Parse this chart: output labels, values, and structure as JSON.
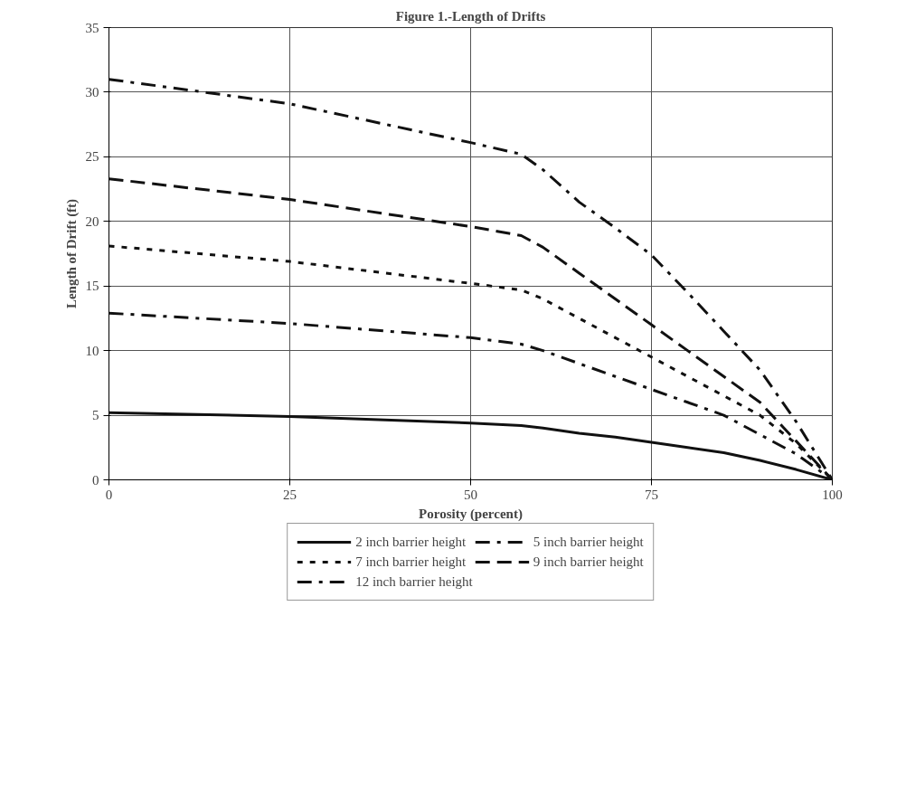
{
  "chart_data": {
    "type": "line",
    "title": "Figure 1.-Length of Drifts",
    "xlabel": "Porosity (percent)",
    "ylabel": "Length of Drift (ft)",
    "x": [
      0,
      25,
      50,
      57,
      60,
      65,
      70,
      75,
      80,
      85,
      90,
      95,
      100
    ],
    "series": [
      {
        "name": "2 inch barrier height",
        "color": "#111111",
        "line_style": "solid",
        "values": [
          5.2,
          4.9,
          4.4,
          4.2,
          4.0,
          3.6,
          3.3,
          2.9,
          2.5,
          2.1,
          1.5,
          0.8,
          0
        ]
      },
      {
        "name": "5 inch barrier height",
        "color": "#111111",
        "line_style": "dashdot",
        "values": [
          12.9,
          12.1,
          11.0,
          10.5,
          10.0,
          9.0,
          8.0,
          7.0,
          6.0,
          5.0,
          3.5,
          2.0,
          0
        ]
      },
      {
        "name": "7 inch barrier height",
        "color": "#111111",
        "line_style": "dotted",
        "values": [
          18.1,
          16.9,
          15.2,
          14.7,
          14.0,
          12.5,
          11.0,
          9.5,
          8.0,
          6.5,
          5.0,
          2.8,
          0
        ]
      },
      {
        "name": "9 inch barrier height",
        "color": "#111111",
        "line_style": "dashed",
        "values": [
          23.3,
          21.7,
          19.6,
          18.9,
          18.0,
          16.0,
          14.0,
          12.0,
          10.0,
          8.0,
          6.0,
          3.0,
          0
        ]
      },
      {
        "name": "12 inch barrier height",
        "color": "#111111",
        "line_style": "dashdot",
        "values": [
          31.0,
          29.1,
          26.1,
          25.2,
          24.0,
          21.5,
          19.5,
          17.4,
          14.5,
          11.5,
          8.5,
          4.5,
          0
        ]
      }
    ],
    "xlim": [
      0,
      100
    ],
    "ylim": [
      0,
      35
    ],
    "xticks": [
      0,
      25,
      50,
      75,
      100
    ],
    "yticks": [
      0,
      5,
      10,
      15,
      20,
      25,
      30,
      35
    ],
    "grid": true,
    "legend": "bottom",
    "marker": "none"
  }
}
